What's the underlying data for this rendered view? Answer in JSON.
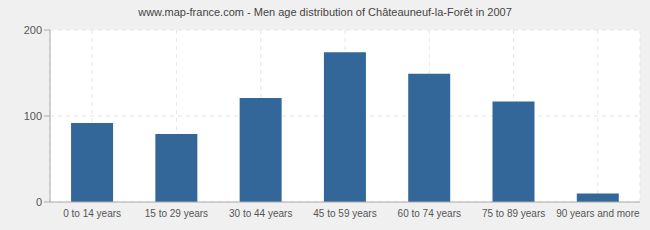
{
  "chart_data": {
    "type": "bar",
    "title": "www.map-france.com - Men age distribution of Châteauneuf-la-Forêt in 2007",
    "categories": [
      "0 to 14 years",
      "15 to 29 years",
      "30 to 44 years",
      "45 to 59 years",
      "60 to 74 years",
      "75 to 89 years",
      "90 years and more"
    ],
    "values": [
      92,
      79,
      121,
      174,
      149,
      117,
      10
    ],
    "color": "#336699",
    "ylim": [
      0,
      200
    ],
    "yticks": [
      0,
      100,
      200
    ],
    "grid": true
  }
}
